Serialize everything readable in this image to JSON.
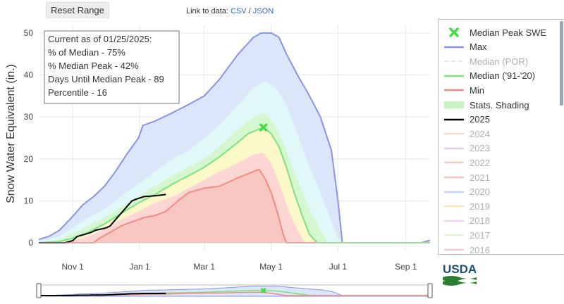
{
  "toolbar": {
    "reset_label": "Reset Range"
  },
  "data_links": {
    "prefix": "Link to data:",
    "csv": "CSV",
    "separator": " / ",
    "json": "JSON"
  },
  "info_box": {
    "current_as_of": "Current as of 01/25/2025:",
    "pct_median": "% of Median - 75%",
    "pct_median_peak": "% Median Peak - 42%",
    "days_until_peak": "Days Until Median Peak - 89",
    "percentile": "Percentile - 16"
  },
  "logo": {
    "text": "USDA"
  },
  "colors": {
    "max": "#8a93e6",
    "median_por": "#b9e6b9",
    "median_9120": "#7de27d",
    "min": "#f28b82",
    "y2025": "#000000",
    "peak_marker": "#44dd44",
    "band_max": "#dce6fb",
    "band_high": "#e0f8f8",
    "band_mid_high": "#d5f7d0",
    "band_mid_low": "#fbf8c9",
    "band_low": "#fcd6d3"
  },
  "chart_data": {
    "type": "area",
    "title": "",
    "xlabel": "",
    "ylabel": "Snow Water Equivalent (in.)",
    "ylim": [
      0,
      52
    ],
    "yticks": [
      0,
      10,
      20,
      30,
      40,
      50
    ],
    "xlim": [
      "2024-10-01",
      "2025-09-23"
    ],
    "xticks": [
      {
        "date": "2024-11-01",
        "label": "Nov 1"
      },
      {
        "date": "2025-01-01",
        "label": "Jan 1"
      },
      {
        "date": "2025-03-01",
        "label": "Mar 1"
      },
      {
        "date": "2025-05-01",
        "label": "May 1"
      },
      {
        "date": "2025-07-01",
        "label": "Jul 1"
      },
      {
        "date": "2025-09-01",
        "label": "Sep 1"
      }
    ],
    "grid": true,
    "legend_position": "right",
    "legend": [
      {
        "name": "Median Peak SWE",
        "color": "#44dd44",
        "kind": "marker"
      },
      {
        "name": "Max",
        "color": "#8a93e6",
        "kind": "line"
      },
      {
        "name": "Median (POR)",
        "color": "#b9e6b9",
        "kind": "dash",
        "muted": true
      },
      {
        "name": "Median ('91-'20)",
        "color": "#7de27d",
        "kind": "line"
      },
      {
        "name": "Min",
        "color": "#f28b82",
        "kind": "line"
      },
      {
        "name": "Stats. Shading",
        "color": "#c9f2c4",
        "kind": "fill"
      },
      {
        "name": "2025",
        "color": "#000000",
        "kind": "line"
      },
      {
        "name": "2024",
        "color": "#f7c48f",
        "kind": "line",
        "muted": true
      },
      {
        "name": "2023",
        "color": "#c7a6ef",
        "kind": "line",
        "muted": true
      },
      {
        "name": "2022",
        "color": "#f0a57f",
        "kind": "line",
        "muted": true
      },
      {
        "name": "2021",
        "color": "#f2968e",
        "kind": "line",
        "muted": true
      },
      {
        "name": "2020",
        "color": "#9da4ee",
        "kind": "line",
        "muted": true
      },
      {
        "name": "2019",
        "color": "#f5cf84",
        "kind": "line",
        "muted": true
      },
      {
        "name": "2018",
        "color": "#e6b4e6",
        "kind": "line",
        "muted": true
      },
      {
        "name": "2017",
        "color": "#cfe8a6",
        "kind": "line",
        "muted": true
      },
      {
        "name": "2016",
        "color": "#f49ab0",
        "kind": "line",
        "muted": true
      }
    ],
    "median_peak": {
      "date": "2025-04-24",
      "value": 27.5
    },
    "series": [
      {
        "name": "Max",
        "points": [
          [
            "2024-10-01",
            0.8
          ],
          [
            "2024-10-10",
            1.5
          ],
          [
            "2024-10-20",
            3
          ],
          [
            "2024-10-31",
            6
          ],
          [
            "2024-11-10",
            9
          ],
          [
            "2024-11-20",
            11
          ],
          [
            "2024-11-30",
            13.5
          ],
          [
            "2024-12-10",
            17
          ],
          [
            "2024-12-20",
            21
          ],
          [
            "2024-12-31",
            25
          ],
          [
            "2025-01-04",
            28
          ],
          [
            "2025-01-15",
            29
          ],
          [
            "2025-01-31",
            31
          ],
          [
            "2025-02-15",
            33
          ],
          [
            "2025-03-01",
            35
          ],
          [
            "2025-03-15",
            39
          ],
          [
            "2025-04-01",
            45
          ],
          [
            "2025-04-15",
            49
          ],
          [
            "2025-04-22",
            50
          ],
          [
            "2025-05-01",
            50
          ],
          [
            "2025-05-08",
            49
          ],
          [
            "2025-05-15",
            45
          ],
          [
            "2025-05-25",
            40
          ],
          [
            "2025-06-05",
            35
          ],
          [
            "2025-06-15",
            30
          ],
          [
            "2025-06-25",
            22
          ],
          [
            "2025-07-01",
            10
          ],
          [
            "2025-07-05",
            0
          ],
          [
            "2025-09-15",
            0
          ],
          [
            "2025-09-23",
            0.6
          ]
        ]
      },
      {
        "name": "Stats. Shading 90%",
        "points": [
          [
            "2024-10-01",
            0.3
          ],
          [
            "2024-10-20",
            1.5
          ],
          [
            "2024-10-31",
            3.5
          ],
          [
            "2024-11-15",
            6
          ],
          [
            "2024-11-30",
            8
          ],
          [
            "2024-12-15",
            11
          ],
          [
            "2024-12-31",
            14
          ],
          [
            "2025-01-15",
            17
          ],
          [
            "2025-01-31",
            20
          ],
          [
            "2025-02-15",
            22
          ],
          [
            "2025-03-01",
            25
          ],
          [
            "2025-03-15",
            28
          ],
          [
            "2025-04-01",
            33
          ],
          [
            "2025-04-15",
            37
          ],
          [
            "2025-04-25",
            38.5
          ],
          [
            "2025-05-05",
            37
          ],
          [
            "2025-05-15",
            33
          ],
          [
            "2025-05-25",
            26
          ],
          [
            "2025-06-05",
            18
          ],
          [
            "2025-06-15",
            12
          ],
          [
            "2025-06-25",
            5
          ],
          [
            "2025-07-01",
            1
          ],
          [
            "2025-07-05",
            0
          ],
          [
            "2025-09-23",
            0
          ]
        ]
      },
      {
        "name": "Stats. Shading 70%",
        "points": [
          [
            "2024-10-01",
            0.1
          ],
          [
            "2024-10-20",
            0.8
          ],
          [
            "2024-10-31",
            2
          ],
          [
            "2024-11-15",
            4
          ],
          [
            "2024-11-30",
            6
          ],
          [
            "2024-12-15",
            8.5
          ],
          [
            "2024-12-31",
            11
          ],
          [
            "2025-01-15",
            13.5
          ],
          [
            "2025-01-31",
            16
          ],
          [
            "2025-02-15",
            18
          ],
          [
            "2025-03-01",
            20
          ],
          [
            "2025-03-15",
            23
          ],
          [
            "2025-04-01",
            27
          ],
          [
            "2025-04-15",
            30
          ],
          [
            "2025-04-25",
            31
          ],
          [
            "2025-05-05",
            28
          ],
          [
            "2025-05-15",
            22
          ],
          [
            "2025-05-25",
            15
          ],
          [
            "2025-06-05",
            8
          ],
          [
            "2025-06-15",
            3
          ],
          [
            "2025-06-22",
            0
          ],
          [
            "2025-09-23",
            0
          ]
        ]
      },
      {
        "name": "Median ('91-'20)",
        "points": [
          [
            "2024-10-01",
            0
          ],
          [
            "2024-10-20",
            0.3
          ],
          [
            "2024-10-31",
            1
          ],
          [
            "2024-11-15",
            2.5
          ],
          [
            "2024-11-30",
            4.5
          ],
          [
            "2024-12-15",
            7
          ],
          [
            "2024-12-31",
            9.5
          ],
          [
            "2025-01-15",
            11.5
          ],
          [
            "2025-01-31",
            14
          ],
          [
            "2025-02-15",
            16
          ],
          [
            "2025-03-01",
            18
          ],
          [
            "2025-03-15",
            20.5
          ],
          [
            "2025-04-01",
            24
          ],
          [
            "2025-04-10",
            26
          ],
          [
            "2025-04-24",
            27.5
          ],
          [
            "2025-05-01",
            26
          ],
          [
            "2025-05-08",
            23
          ],
          [
            "2025-05-15",
            18
          ],
          [
            "2025-05-22",
            12
          ],
          [
            "2025-05-30",
            6
          ],
          [
            "2025-06-05",
            2
          ],
          [
            "2025-06-12",
            0
          ],
          [
            "2025-09-23",
            0
          ]
        ]
      },
      {
        "name": "Stats. Shading 30%",
        "points": [
          [
            "2024-10-01",
            0
          ],
          [
            "2024-10-25",
            0.2
          ],
          [
            "2024-11-05",
            0.8
          ],
          [
            "2024-11-20",
            2
          ],
          [
            "2024-11-30",
            3.5
          ],
          [
            "2024-12-15",
            5.5
          ],
          [
            "2024-12-31",
            7.5
          ],
          [
            "2025-01-15",
            9.5
          ],
          [
            "2025-01-31",
            11
          ],
          [
            "2025-02-15",
            13
          ],
          [
            "2025-03-01",
            15
          ],
          [
            "2025-03-15",
            17
          ],
          [
            "2025-04-01",
            19
          ],
          [
            "2025-04-15",
            21
          ],
          [
            "2025-04-24",
            21.5
          ],
          [
            "2025-05-01",
            19
          ],
          [
            "2025-05-10",
            13
          ],
          [
            "2025-05-18",
            7
          ],
          [
            "2025-05-25",
            3
          ],
          [
            "2025-06-01",
            0
          ],
          [
            "2025-09-23",
            0
          ]
        ]
      },
      {
        "name": "Min",
        "points": [
          [
            "2024-10-01",
            0
          ],
          [
            "2024-11-20",
            0
          ],
          [
            "2024-11-25",
            1
          ],
          [
            "2024-12-05",
            2.5
          ],
          [
            "2024-12-15",
            4
          ],
          [
            "2024-12-25",
            5
          ],
          [
            "2025-01-05",
            6
          ],
          [
            "2025-01-15",
            6.5
          ],
          [
            "2025-01-25",
            7.5
          ],
          [
            "2025-02-05",
            10
          ],
          [
            "2025-02-15",
            12
          ],
          [
            "2025-03-01",
            13
          ],
          [
            "2025-03-15",
            13.5
          ],
          [
            "2025-04-01",
            15.5
          ],
          [
            "2025-04-15",
            17
          ],
          [
            "2025-04-20",
            17.5
          ],
          [
            "2025-04-25",
            15.5
          ],
          [
            "2025-05-01",
            12
          ],
          [
            "2025-05-07",
            7
          ],
          [
            "2025-05-12",
            2
          ],
          [
            "2025-05-15",
            0
          ],
          [
            "2025-09-23",
            0
          ]
        ]
      },
      {
        "name": "2025",
        "points": [
          [
            "2024-10-01",
            0
          ],
          [
            "2024-10-25",
            0
          ],
          [
            "2024-11-01",
            0.5
          ],
          [
            "2024-11-05",
            1.5
          ],
          [
            "2024-11-12",
            2
          ],
          [
            "2024-11-18",
            2.5
          ],
          [
            "2024-11-22",
            3
          ],
          [
            "2024-12-01",
            3.5
          ],
          [
            "2024-12-05",
            4
          ],
          [
            "2024-12-10",
            5.5
          ],
          [
            "2024-12-15",
            7
          ],
          [
            "2024-12-20",
            8.5
          ],
          [
            "2024-12-25",
            10
          ],
          [
            "2024-12-30",
            10.5
          ],
          [
            "2025-01-05",
            11
          ],
          [
            "2025-01-15",
            11.2
          ],
          [
            "2025-01-25",
            11.5
          ]
        ]
      }
    ]
  }
}
